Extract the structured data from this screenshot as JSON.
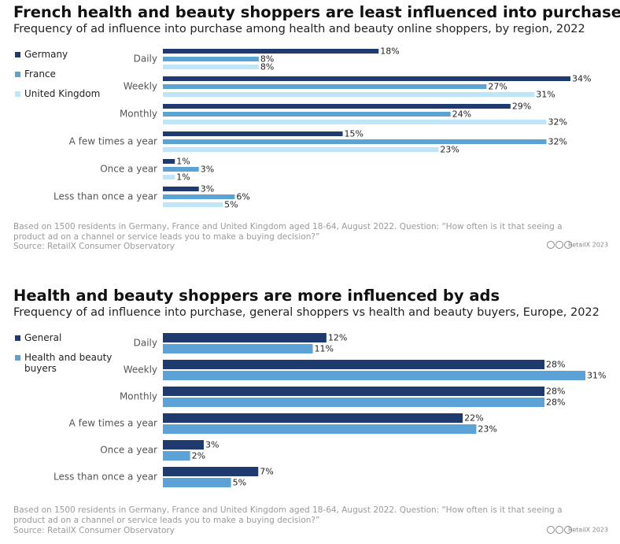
{
  "chart_data": [
    {
      "type": "bar",
      "title": "French health and beauty shoppers are least influenced into purchase by ads",
      "subtitle": "Frequency of ad influence into purchase among health and beauty online shoppers, by region, 2022",
      "categories": [
        "Daily",
        "Weekly",
        "Monthly",
        "A few times a year",
        "Once a year",
        "Less than once a year"
      ],
      "series": [
        {
          "name": "Germany",
          "color": "#1f3a6e",
          "values": [
            18,
            34,
            29,
            15,
            1,
            3
          ],
          "value_labels": [
            "18%",
            "34%",
            "29%",
            "15%",
            "1%",
            "3%"
          ]
        },
        {
          "name": "France",
          "color": "#5ba3d3",
          "values": [
            8,
            27,
            24,
            32,
            3,
            6
          ],
          "value_labels": [
            "8%",
            "27%",
            "24%",
            "32%",
            "3%",
            "6%"
          ]
        },
        {
          "name": "United Kingdom",
          "color": "#bfe6f8",
          "values": [
            8,
            31,
            32,
            23,
            1,
            5
          ],
          "value_labels": [
            "8%",
            "31%",
            "32%",
            "23%",
            "1%",
            "5%"
          ]
        }
      ],
      "note": "Based on 1500 residents in Germany, France and United Kingdom aged 18-64, August 2022. Question: “How often is it that seeing a product ad on a channel or service leads you to make a buying decision?”",
      "source": "Source: RetailX Consumer Observatory",
      "credit": "RetailX 2023"
    },
    {
      "type": "bar",
      "title": "Health and beauty shoppers are more influenced by ads",
      "subtitle": "Frequency of ad influence into purchase, general shoppers vs health and beauty buyers, Europe, 2022",
      "categories": [
        "Daily",
        "Weekly",
        "Monthly",
        "A few times a year",
        "Once a year",
        "Less than once a year"
      ],
      "series": [
        {
          "name": "General",
          "color": "#1f3a6e",
          "values": [
            12,
            28,
            28,
            22,
            3,
            7
          ],
          "value_labels": [
            "12%",
            "28%",
            "28%",
            "22%",
            "3%",
            "7%"
          ]
        },
        {
          "name": "Health and beauty buyers",
          "color": "#5ba3d6",
          "values": [
            11,
            31,
            28,
            23,
            2,
            5
          ],
          "value_labels": [
            "11%",
            "31%",
            "28%",
            "23%",
            "2%",
            "5%"
          ]
        }
      ],
      "note": "Based on 1500 residents in Germany, France and United Kingdom aged 18-64, August 2022. Question: “How often is it that seeing a product ad on a channel or service leads you to make a buying decision?”",
      "source": "Source: RetailX Consumer Observatory",
      "credit": "RetailX 2023"
    }
  ]
}
